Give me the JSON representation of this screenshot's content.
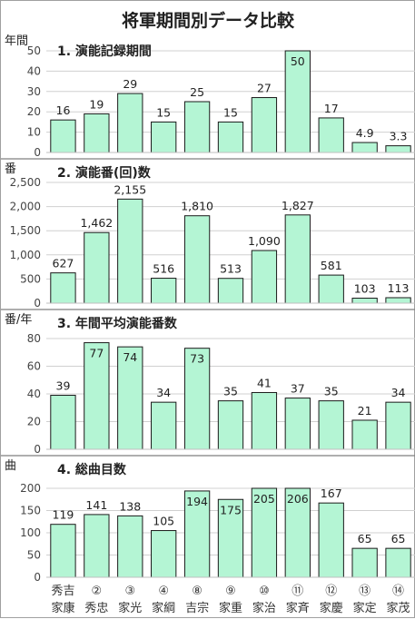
{
  "title": "将軍期間別データ比較",
  "categories": [
    {
      "top": "秀吉",
      "bottom": "家康"
    },
    {
      "top": "②",
      "bottom": "秀忠"
    },
    {
      "top": "③",
      "bottom": "家光"
    },
    {
      "top": "④",
      "bottom": "家綱"
    },
    {
      "top": "⑧",
      "bottom": "吉宗"
    },
    {
      "top": "⑨",
      "bottom": "家重"
    },
    {
      "top": "⑩",
      "bottom": "家治"
    },
    {
      "top": "⑪",
      "bottom": "家斉"
    },
    {
      "top": "⑫",
      "bottom": "家慶"
    },
    {
      "top": "⑬",
      "bottom": "家定"
    },
    {
      "top": "⑭",
      "bottom": "家茂"
    }
  ],
  "chart_data": [
    {
      "type": "bar",
      "title": "1. 演能記録期間",
      "ylabel": "年間",
      "ylim": [
        0,
        50
      ],
      "yticks": [
        0,
        10,
        20,
        30,
        40,
        50
      ],
      "ytick_labels": [
        "0",
        "10",
        "20",
        "30",
        "40",
        "50"
      ],
      "categories": [
        "秀吉 家康",
        "② 秀忠",
        "③ 家光",
        "④ 家綱",
        "⑧ 吉宗",
        "⑨ 家重",
        "⑩ 家治",
        "⑪ 家斉",
        "⑫ 家慶",
        "⑬ 家定",
        "⑭ 家茂"
      ],
      "values": [
        16,
        19,
        29,
        15,
        25,
        15,
        27,
        50,
        17,
        4.9,
        3.3
      ],
      "data_labels": [
        "16",
        "19",
        "29",
        "15",
        "25",
        "15",
        "27",
        "50",
        "17",
        "4.9",
        "3.3"
      ],
      "grid": true
    },
    {
      "type": "bar",
      "title": "2. 演能番(回)数",
      "ylabel": "番",
      "ylim": [
        0,
        2500
      ],
      "yticks": [
        0,
        500,
        1000,
        1500,
        2000,
        2500
      ],
      "ytick_labels": [
        "0",
        "500",
        "1,000",
        "1,500",
        "2,000",
        "2,500"
      ],
      "categories": [
        "秀吉 家康",
        "② 秀忠",
        "③ 家光",
        "④ 家綱",
        "⑧ 吉宗",
        "⑨ 家重",
        "⑩ 家治",
        "⑪ 家斉",
        "⑫ 家慶",
        "⑬ 家定",
        "⑭ 家茂"
      ],
      "values": [
        627,
        1462,
        2155,
        516,
        1810,
        513,
        1090,
        1827,
        581,
        103,
        113
      ],
      "data_labels": [
        "627",
        "1,462",
        "2,155",
        "516",
        "1,810",
        "513",
        "1,090",
        "1,827",
        "581",
        "103",
        "113"
      ],
      "grid": true
    },
    {
      "type": "bar",
      "title": "3. 年間平均演能番数",
      "ylabel": "番/年",
      "ylim": [
        0,
        80
      ],
      "yticks": [
        0,
        20,
        40,
        60,
        80
      ],
      "ytick_labels": [
        "0",
        "20",
        "40",
        "60",
        "80"
      ],
      "categories": [
        "秀吉 家康",
        "② 秀忠",
        "③ 家光",
        "④ 家綱",
        "⑧ 吉宗",
        "⑨ 家重",
        "⑩ 家治",
        "⑪ 家斉",
        "⑫ 家慶",
        "⑬ 家定",
        "⑭ 家茂"
      ],
      "values": [
        39,
        77,
        74,
        34,
        73,
        35,
        41,
        37,
        35,
        21,
        34
      ],
      "data_labels": [
        "39",
        "77",
        "74",
        "34",
        "73",
        "35",
        "41",
        "37",
        "35",
        "21",
        "34"
      ],
      "grid": true
    },
    {
      "type": "bar",
      "title": "4. 総曲目数",
      "ylabel": "曲",
      "ylim": [
        0,
        200
      ],
      "yticks": [
        0,
        50,
        100,
        150,
        200
      ],
      "ytick_labels": [
        "0",
        "50",
        "100",
        "150",
        "200"
      ],
      "categories": [
        "秀吉 家康",
        "② 秀忠",
        "③ 家光",
        "④ 家綱",
        "⑧ 吉宗",
        "⑨ 家重",
        "⑩ 家治",
        "⑪ 家斉",
        "⑫ 家慶",
        "⑬ 家定",
        "⑭ 家茂"
      ],
      "values": [
        119,
        141,
        138,
        105,
        194,
        175,
        205,
        206,
        167,
        65,
        65
      ],
      "data_labels": [
        "119",
        "141",
        "138",
        "105",
        "194",
        "175",
        "205",
        "206",
        "167",
        "65",
        "65"
      ],
      "grid": true
    }
  ],
  "colors": {
    "bar_fill": "#b4f5d4",
    "bar_stroke": "#1a1a1a"
  }
}
